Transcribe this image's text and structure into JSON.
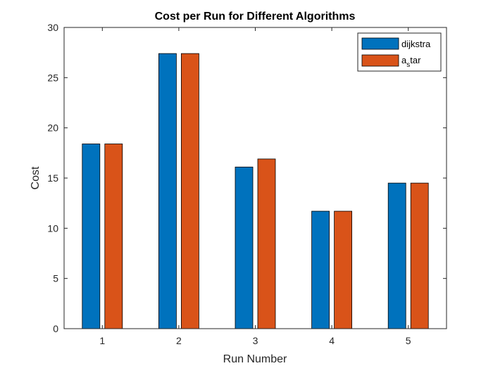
{
  "chart_data": {
    "type": "bar",
    "title": "Cost per Run for Different Algorithms",
    "xlabel": "Run Number",
    "ylabel": "Cost",
    "categories": [
      "1",
      "2",
      "3",
      "4",
      "5"
    ],
    "ylim": [
      0,
      30
    ],
    "yticks": [
      "0",
      "5",
      "10",
      "15",
      "20",
      "25",
      "30"
    ],
    "series": [
      {
        "name": "dijkstra",
        "color": "#0072BD",
        "values": [
          18.4,
          27.4,
          16.1,
          11.7,
          14.5
        ]
      },
      {
        "name": "astar",
        "name_main_1": "a",
        "name_sub": "s",
        "name_main_2": "tar",
        "color": "#D95319",
        "values": [
          18.4,
          27.4,
          16.9,
          11.7,
          14.5
        ]
      }
    ],
    "legend": "top-right",
    "grid": false
  }
}
